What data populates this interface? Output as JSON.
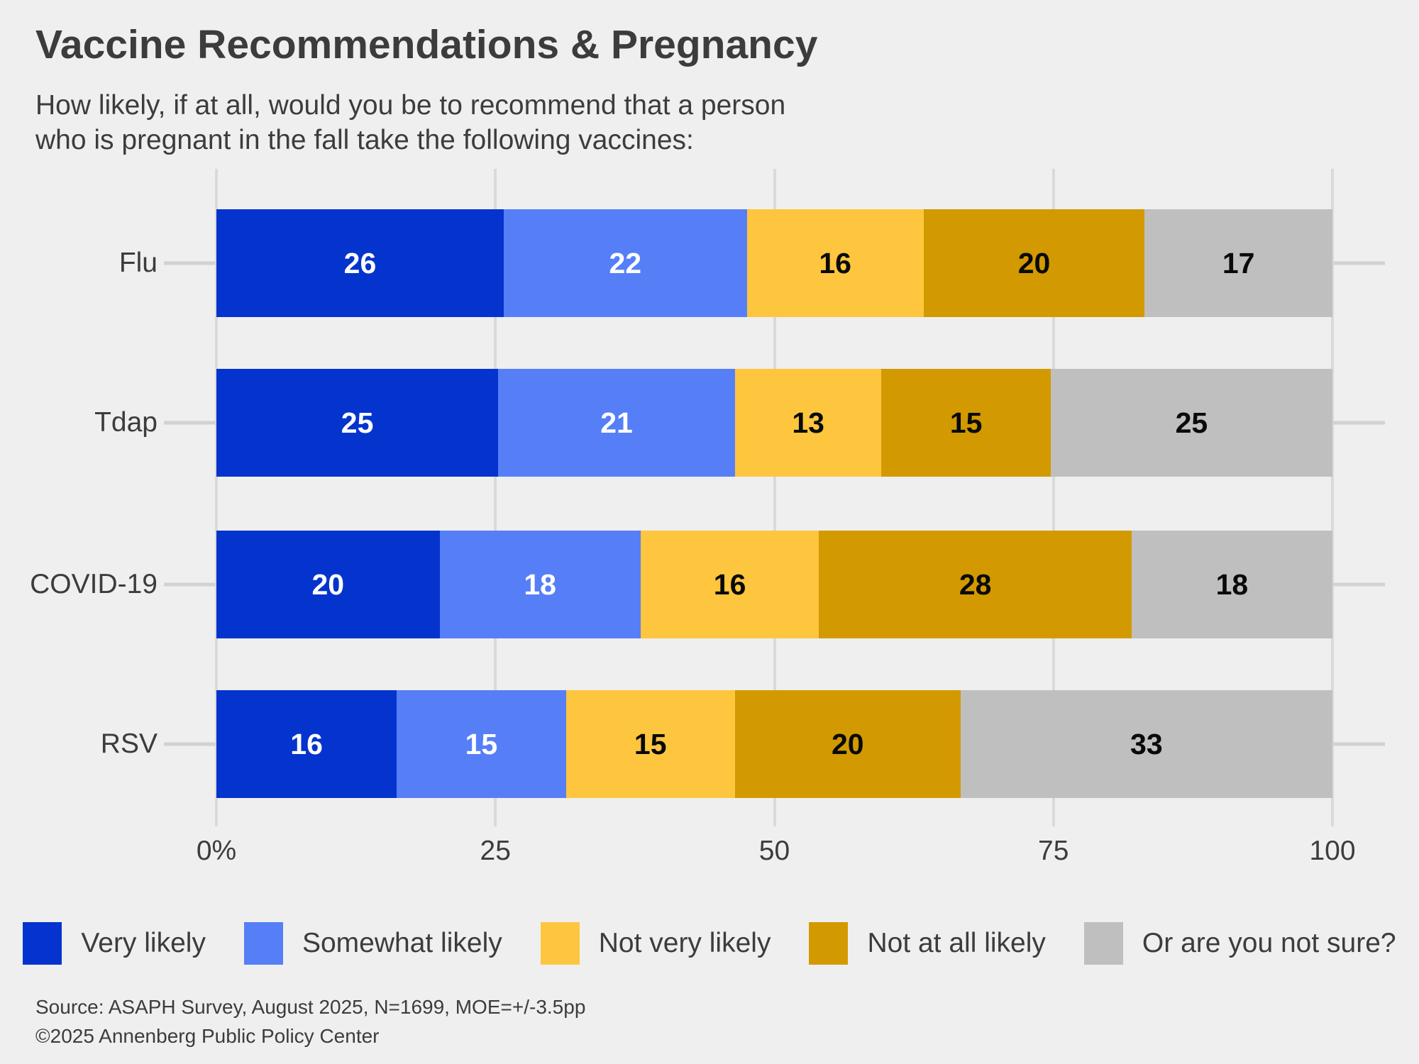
{
  "title": "Vaccine Recommendations & Pregnancy",
  "subtitle_line1": "How likely, if at all, would you be to recommend that a person",
  "subtitle_line2": "who is pregnant in the fall take the following vaccines:",
  "colors": {
    "background": "#efefef",
    "gridline": "#dadada",
    "tick": "#d2d2d2",
    "text": "#3c3c3c"
  },
  "chart_data": {
    "type": "bar",
    "orientation": "horizontal",
    "stacked": true,
    "grid": true,
    "legend_position": "bottom",
    "categories": [
      "Flu",
      "Tdap",
      "COVID-19",
      "RSV"
    ],
    "series": [
      {
        "name": "Very likely",
        "color": "#0434cd",
        "text_color": "#ffffff",
        "values": [
          26,
          25,
          20,
          16
        ]
      },
      {
        "name": "Somewhat likely",
        "color": "#567ff7",
        "text_color": "#ffffff",
        "values": [
          22,
          21,
          18,
          15
        ]
      },
      {
        "name": "Not very likely",
        "color": "#fec63e",
        "text_color": "#0a0a0a",
        "values": [
          16,
          13,
          16,
          15
        ]
      },
      {
        "name": "Not at all likely",
        "color": "#d29a00",
        "text_color": "#0a0a0a",
        "values": [
          20,
          15,
          28,
          20
        ]
      },
      {
        "name": "Or are you not sure?",
        "color": "#bfbfbf",
        "text_color": "#0a0a0a",
        "values": [
          17,
          25,
          18,
          33
        ]
      }
    ],
    "x_axis": {
      "min": 0,
      "max": 100,
      "tick_labels": [
        "0%",
        "25",
        "50",
        "75",
        "100"
      ],
      "tick_values": [
        0,
        25,
        50,
        75,
        100
      ]
    }
  },
  "footer": {
    "source_line1": "Source: ASAPH Survey, August 2025, N=1699, MOE=+/-3.5pp",
    "source_line2": "©2025 Annenberg Public Policy Center"
  }
}
